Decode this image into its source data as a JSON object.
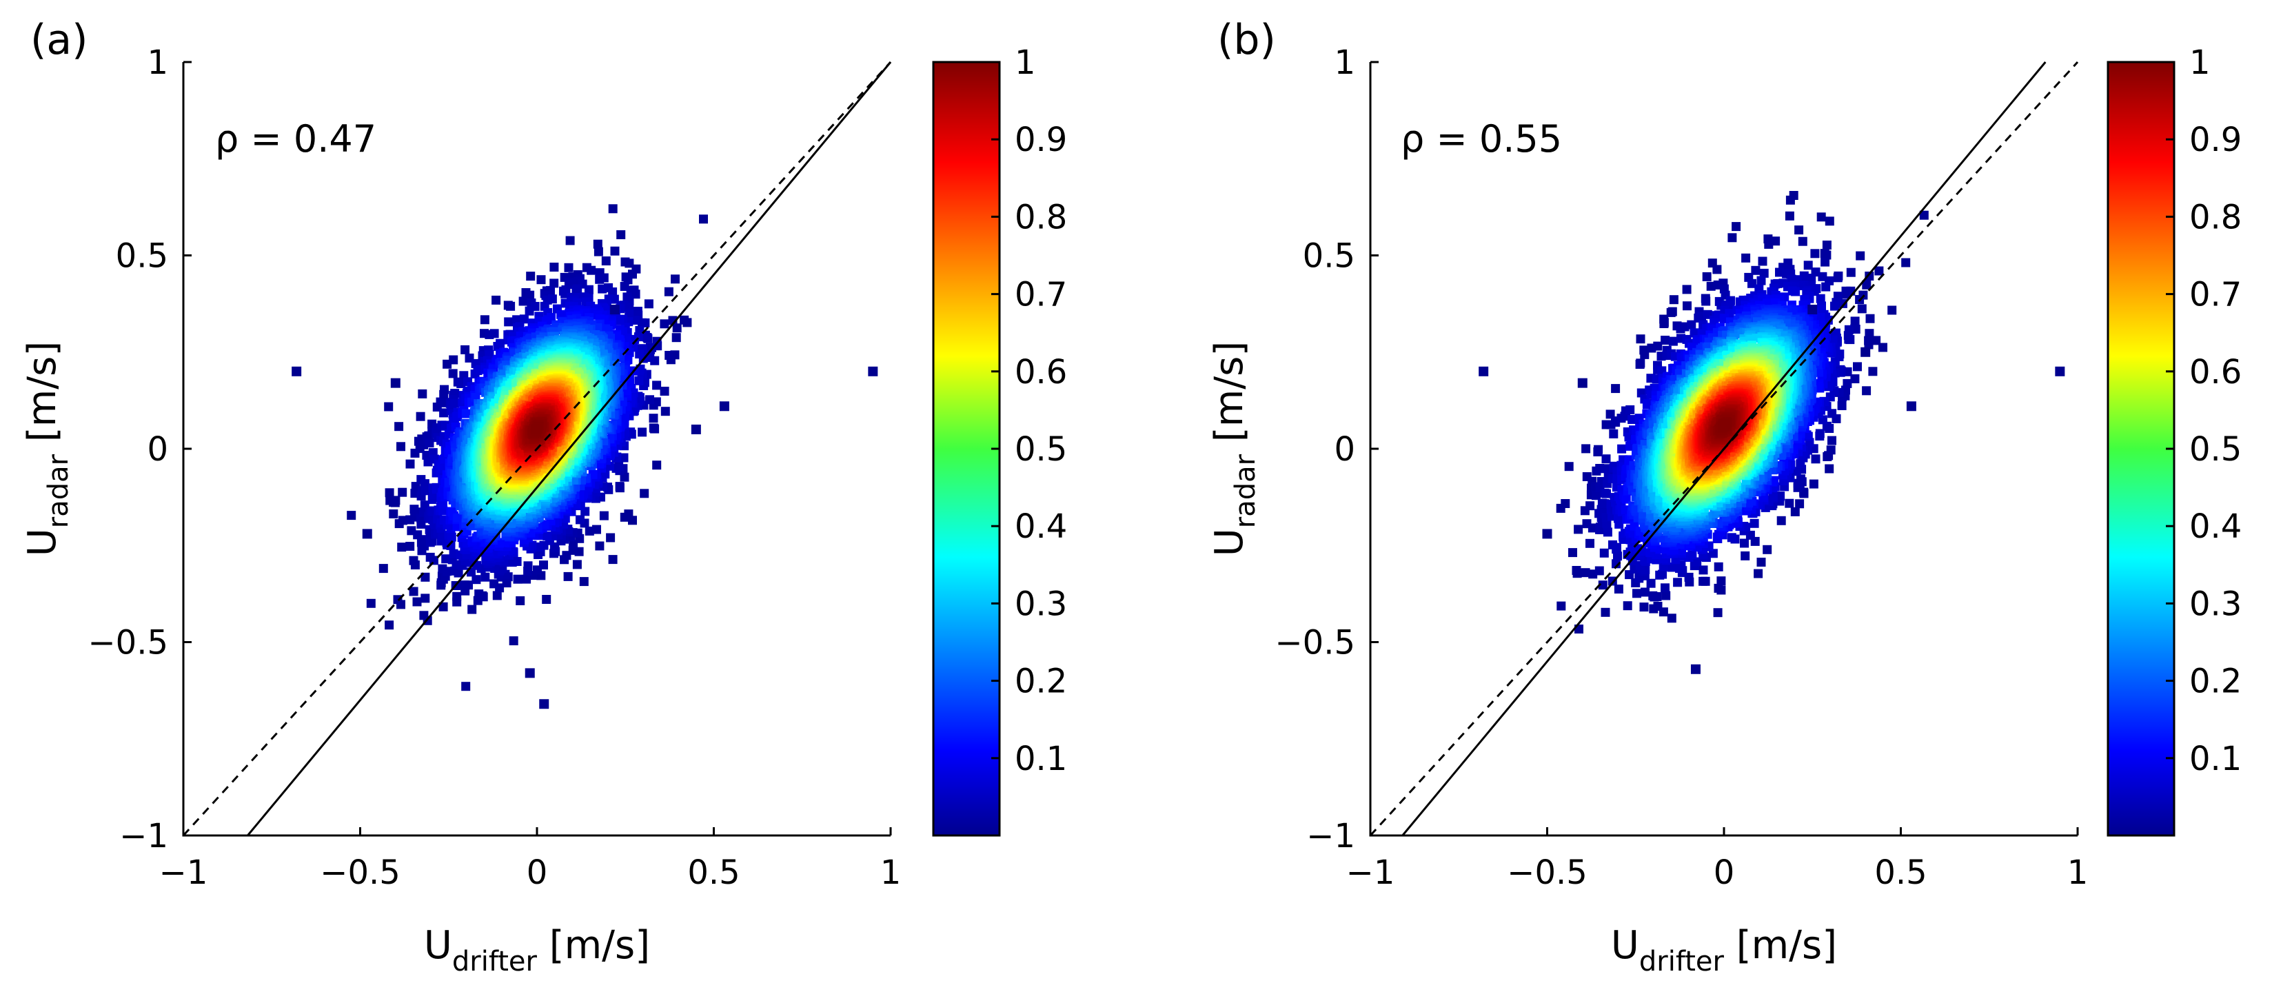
{
  "chart_data": [
    {
      "type": "scatter",
      "panel_label": "(a)",
      "annotation": "ρ = 0.47",
      "xlabel": {
        "main": "U",
        "sub": "drifter",
        "unit": " [m/s]"
      },
      "ylabel": {
        "main": "U",
        "sub": "radar",
        "unit": " [m/s]"
      },
      "xlim": [
        -1,
        1
      ],
      "ylim": [
        -1,
        1
      ],
      "x_ticks": [
        -1,
        -0.5,
        0,
        0.5,
        1
      ],
      "y_ticks": [
        -1,
        -0.5,
        0,
        0.5,
        1
      ],
      "x_tick_labels": [
        "−1",
        "−0.5",
        "0",
        "0.5",
        "1"
      ],
      "y_tick_labels": [
        "−1",
        "−0.5",
        "0",
        "0.5",
        "1"
      ],
      "grid": false,
      "density": {
        "center": [
          0.0,
          0.05
        ],
        "std": [
          0.13,
          0.15
        ],
        "correlation": 0.47,
        "count": 5000
      },
      "outliers": [
        [
          -0.68,
          0.2
        ],
        [
          0.95,
          0.2
        ],
        [
          0.53,
          0.11
        ],
        [
          -0.4,
          0.17
        ],
        [
          0.02,
          -0.66
        ],
        [
          -0.48,
          -0.22
        ],
        [
          0.22,
          0.36
        ],
        [
          -0.02,
          -0.58
        ],
        [
          0.45,
          0.05
        ]
      ],
      "regression_line": {
        "style": "solid",
        "slope": 1.1,
        "intercept": -0.1
      },
      "one_to_one_line": {
        "style": "dashed",
        "slope": 1.0,
        "intercept": 0.0
      },
      "colorbar": {
        "range": [
          0,
          1
        ],
        "ticks": [
          0.1,
          0.2,
          0.3,
          0.4,
          0.5,
          0.6,
          0.7,
          0.8,
          0.9,
          1
        ],
        "tick_labels": [
          "0.1",
          "0.2",
          "0.3",
          "0.4",
          "0.5",
          "0.6",
          "0.7",
          "0.8",
          "0.9",
          "1"
        ],
        "colormap": "jet"
      }
    },
    {
      "type": "scatter",
      "panel_label": "(b)",
      "annotation": "ρ = 0.55",
      "xlabel": {
        "main": "U",
        "sub": "drifter",
        "unit": " [m/s]"
      },
      "ylabel": {
        "main": "U",
        "sub": "radar",
        "unit": " [m/s]"
      },
      "xlim": [
        -1,
        1
      ],
      "ylim": [
        -1,
        1
      ],
      "x_ticks": [
        -1,
        -0.5,
        0,
        0.5,
        1
      ],
      "y_ticks": [
        -1,
        -0.5,
        0,
        0.5,
        1
      ],
      "x_tick_labels": [
        "−1",
        "−0.5",
        "0",
        "0.5",
        "1"
      ],
      "y_tick_labels": [
        "−1",
        "−0.5",
        "0",
        "0.5",
        "1"
      ],
      "grid": false,
      "density": {
        "center": [
          0.0,
          0.06
        ],
        "std": [
          0.14,
          0.16
        ],
        "correlation": 0.55,
        "count": 5000
      },
      "outliers": [
        [
          -0.68,
          0.2
        ],
        [
          0.95,
          0.2
        ],
        [
          0.53,
          0.11
        ],
        [
          -0.4,
          0.17
        ],
        [
          -0.08,
          -0.57
        ],
        [
          -0.5,
          -0.22
        ],
        [
          0.25,
          0.36
        ],
        [
          0.4,
          0.25
        ]
      ],
      "regression_line": {
        "style": "solid",
        "slope": 1.1,
        "intercept": 0.0
      },
      "one_to_one_line": {
        "style": "dashed",
        "slope": 1.0,
        "intercept": 0.0
      },
      "colorbar": {
        "range": [
          0,
          1
        ],
        "ticks": [
          0.1,
          0.2,
          0.3,
          0.4,
          0.5,
          0.6,
          0.7,
          0.8,
          0.9,
          1
        ],
        "tick_labels": [
          "0.1",
          "0.2",
          "0.3",
          "0.4",
          "0.5",
          "0.6",
          "0.7",
          "0.8",
          "0.9",
          "1"
        ],
        "colormap": "jet"
      }
    }
  ]
}
